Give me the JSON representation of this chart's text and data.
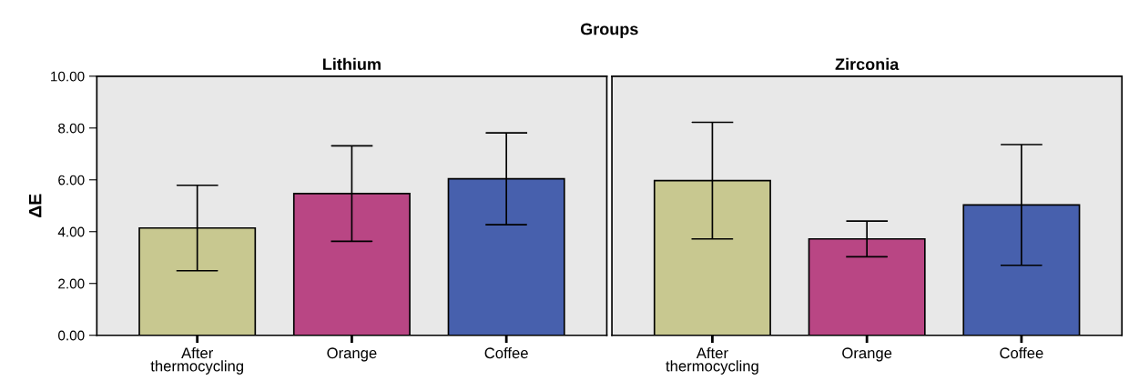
{
  "chart_data": [
    {
      "type": "bar",
      "title": "Lithium",
      "ylabel": "ΔE",
      "annotations": [
        "Groups"
      ],
      "categories": [
        "After\nthermocycling",
        "Orange",
        "Coffee"
      ],
      "values": [
        4.14,
        5.47,
        6.04
      ],
      "colors": [
        "#c8c890",
        "#b94684",
        "#4760ad"
      ],
      "errors": [
        1.65,
        1.84,
        1.77
      ],
      "ylim": [
        0,
        10
      ],
      "yticks": [
        {
          "value": 0,
          "label": "0.00"
        },
        {
          "value": 2,
          "label": "2.00"
        },
        {
          "value": 4,
          "label": "4.00"
        },
        {
          "value": 6,
          "label": "6.00"
        },
        {
          "value": 8,
          "label": "8.00"
        },
        {
          "value": 10,
          "label": "10.00"
        }
      ],
      "grid": false
    },
    {
      "type": "bar",
      "title": "Zirconia",
      "categories": [
        "After\nthermocycling",
        "Orange",
        "Coffee"
      ],
      "values": [
        5.97,
        3.72,
        5.03
      ],
      "colors": [
        "#c8c890",
        "#b94684",
        "#4760ad"
      ],
      "errors": [
        2.25,
        0.69,
        2.33
      ],
      "ylim": [
        0,
        10
      ],
      "tick_labels": "x",
      "grid": false
    }
  ]
}
